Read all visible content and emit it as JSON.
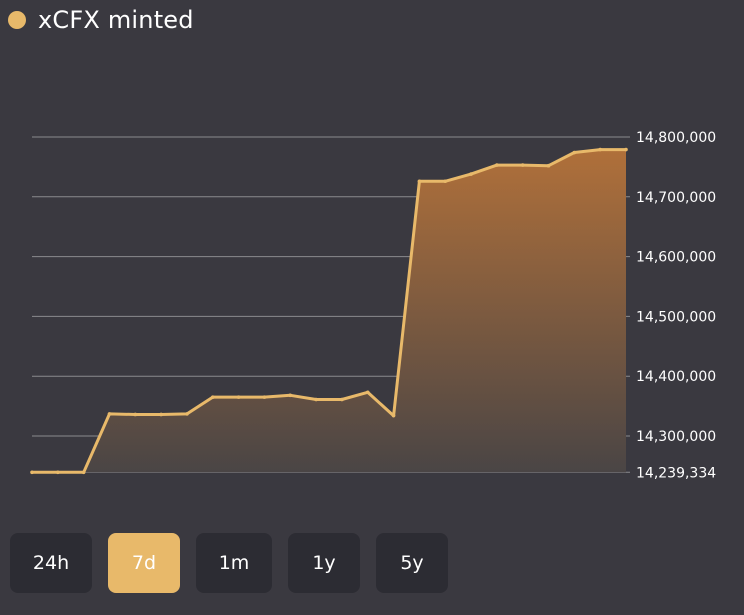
{
  "legend": {
    "label": "xCFX minted",
    "color": "#e8b96a"
  },
  "ranges": [
    {
      "label": "24h",
      "active": false
    },
    {
      "label": "7d",
      "active": true
    },
    {
      "label": "1m",
      "active": false
    },
    {
      "label": "1y",
      "active": false
    },
    {
      "label": "5y",
      "active": false
    }
  ],
  "colors": {
    "background": "#3a3940",
    "line": "#e8b96a",
    "area_top": "#b0703a",
    "area_bottom": "#4a4545",
    "grid": "#8a8a8e",
    "button": "#2c2c33",
    "button_active": "#e8b96a"
  },
  "chart_data": {
    "type": "area",
    "title": "xCFX minted",
    "xlabel": "",
    "ylabel": "",
    "ylim": [
      14239334,
      14800000
    ],
    "grid": true,
    "y_axis_side": "right",
    "yticks": [
      14800000,
      14700000,
      14600000,
      14500000,
      14400000,
      14300000,
      14239334
    ],
    "ytick_labels": [
      "14,800,000",
      "14,700,000",
      "14,600,000",
      "14,500,000",
      "14,400,000",
      "14,300,000",
      "14,239,334"
    ],
    "series": [
      {
        "values": [
          14239334,
          14239334,
          14239334,
          14337000,
          14336000,
          14336000,
          14337000,
          14365000,
          14365000,
          14365000,
          14368000,
          14361000,
          14361000,
          14373000,
          14334000,
          14726000,
          14726000,
          14738000,
          14753000,
          14753000,
          14752000,
          14774000,
          14779000,
          14779000
        ]
      }
    ]
  }
}
